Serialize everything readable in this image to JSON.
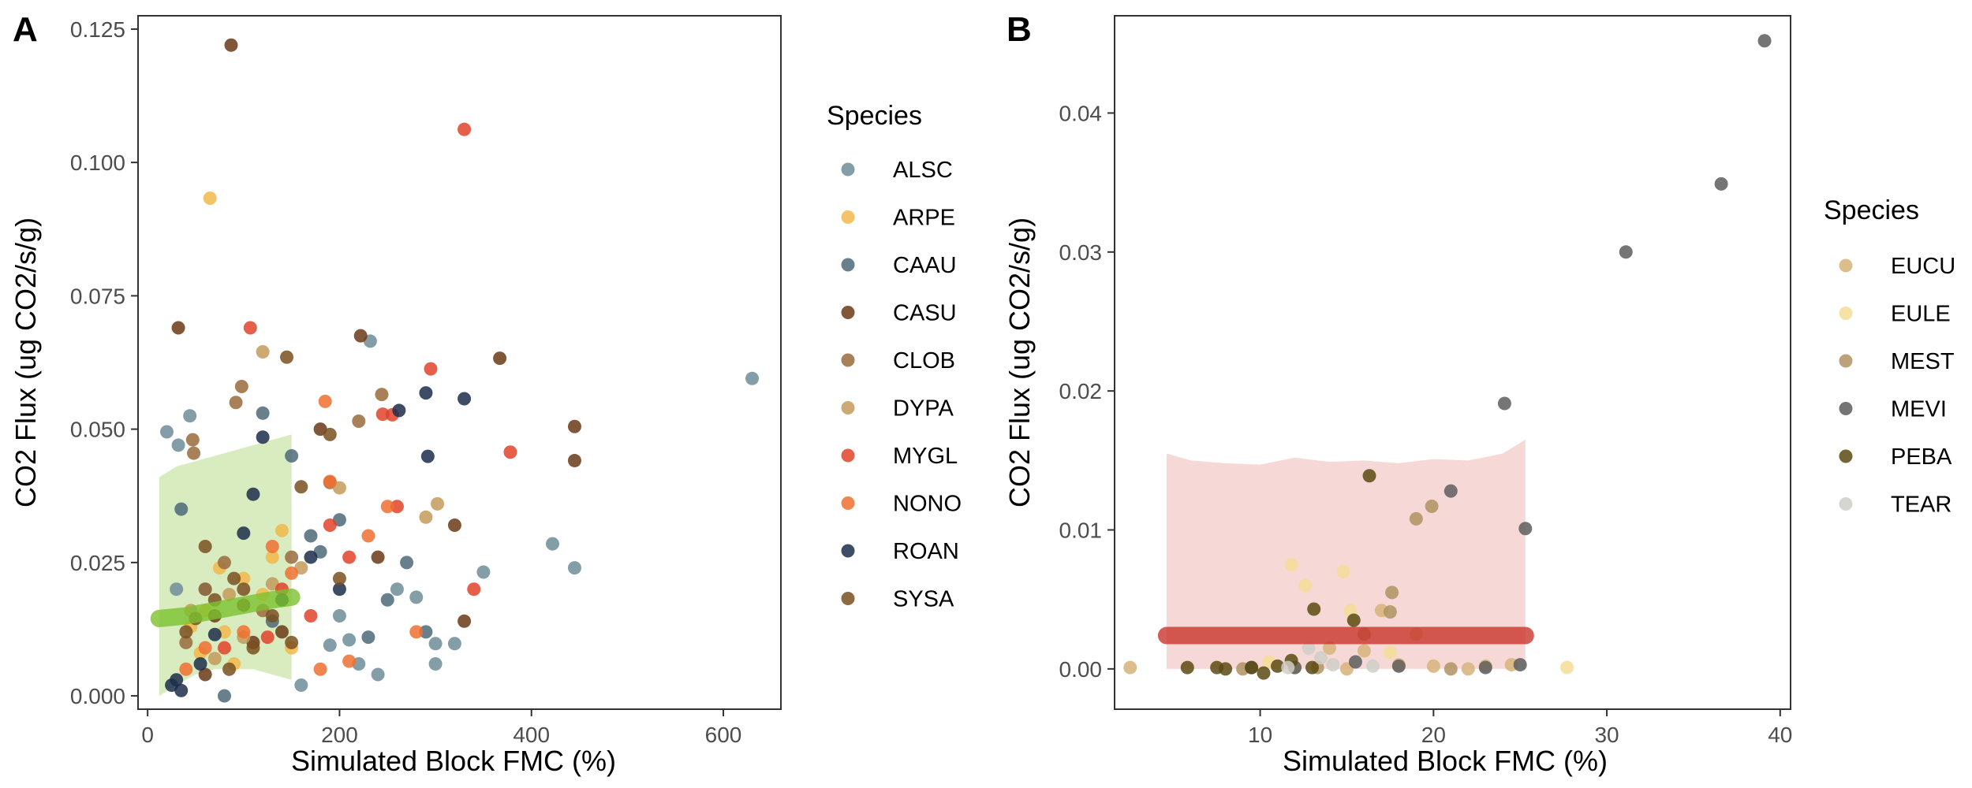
{
  "chart_data": [
    {
      "panel_label": "A",
      "type": "scatter",
      "xlabel": "Simulated Block FMC (%)",
      "ylabel": "CO2 Flux (ug CO2/s/g)",
      "xlim": [
        -10,
        660
      ],
      "ylim": [
        -0.0025,
        0.1275
      ],
      "xticks": [
        0,
        200,
        400,
        600
      ],
      "yticks": [
        0.0,
        0.025,
        0.05,
        0.075,
        0.1,
        0.125
      ],
      "ytick_labels": [
        "0.000",
        "0.025",
        "0.050",
        "0.075",
        "0.100",
        "0.125"
      ],
      "legend_title": "Species",
      "legend_position": "right",
      "grid": false,
      "ribbon": {
        "color": "#8fc84a",
        "x": [
          12,
          30,
          50,
          70,
          90,
          110,
          130,
          150
        ],
        "lower": [
          0.0,
          0.002,
          0.004,
          0.005,
          0.005,
          0.005,
          0.004,
          0.003
        ],
        "upper": [
          0.041,
          0.043,
          0.044,
          0.045,
          0.046,
          0.047,
          0.048,
          0.049
        ]
      },
      "trend_line": {
        "color": "#7cc22e",
        "x": [
          12,
          40,
          70,
          100,
          130,
          150
        ],
        "y": [
          0.0145,
          0.015,
          0.016,
          0.017,
          0.018,
          0.0185
        ]
      },
      "series": [
        {
          "name": "ALSC",
          "color": "#6f8d99",
          "points": [
            [
              20,
              0.0495
            ],
            [
              30,
              0.02
            ],
            [
              44,
              0.0525
            ],
            [
              32,
              0.047
            ],
            [
              630,
              0.0595
            ],
            [
              232,
              0.0665
            ],
            [
              422,
              0.0285
            ],
            [
              445,
              0.024
            ],
            [
              350,
              0.0232
            ],
            [
              300,
              0.0098
            ],
            [
              280,
              0.0185
            ],
            [
              220,
              0.006
            ],
            [
              240,
              0.004
            ],
            [
              160,
              0.002
            ],
            [
              190,
              0.0095
            ],
            [
              200,
              0.015
            ],
            [
              260,
              0.02
            ],
            [
              320,
              0.0098
            ],
            [
              300,
              0.006
            ],
            [
              210,
              0.0105
            ]
          ]
        },
        {
          "name": "ARPE",
          "color": "#f2b84b",
          "points": [
            [
              65,
              0.0933
            ],
            [
              60,
              0.016
            ],
            [
              80,
              0.012
            ],
            [
              100,
              0.022
            ],
            [
              120,
              0.019
            ],
            [
              140,
              0.031
            ],
            [
              55,
              0.008
            ],
            [
              45,
              0.013
            ],
            [
              75,
              0.024
            ],
            [
              130,
              0.026
            ],
            [
              150,
              0.009
            ],
            [
              90,
              0.006
            ]
          ]
        },
        {
          "name": "CAAU",
          "color": "#4e6878",
          "points": [
            [
              35,
              0.035
            ],
            [
              60,
              0.02
            ],
            [
              170,
              0.03
            ],
            [
              200,
              0.033
            ],
            [
              150,
              0.045
            ],
            [
              250,
              0.018
            ],
            [
              270,
              0.025
            ],
            [
              130,
              0.014
            ],
            [
              80,
              0.0
            ],
            [
              290,
              0.012
            ],
            [
              230,
              0.011
            ],
            [
              180,
              0.027
            ],
            [
              120,
              0.053
            ]
          ]
        },
        {
          "name": "CASU",
          "color": "#6b3a16",
          "points": [
            [
              87,
              0.122
            ],
            [
              32,
              0.069
            ],
            [
              222,
              0.0675
            ],
            [
              367,
              0.0633
            ],
            [
              445,
              0.0505
            ],
            [
              445,
              0.0441
            ],
            [
              240,
              0.026
            ],
            [
              320,
              0.032
            ],
            [
              100,
              0.017
            ],
            [
              70,
              0.015
            ],
            [
              140,
              0.012
            ],
            [
              180,
              0.05
            ],
            [
              330,
              0.014
            ],
            [
              60,
              0.004
            ],
            [
              110,
              0.01
            ]
          ]
        },
        {
          "name": "CLOB",
          "color": "#9a6b3c",
          "points": [
            [
              98,
              0.058
            ],
            [
              92,
              0.055
            ],
            [
              47,
              0.048
            ],
            [
              48,
              0.0455
            ],
            [
              244,
              0.0565
            ],
            [
              220,
              0.0515
            ],
            [
              60,
              0.02
            ],
            [
              120,
              0.016
            ],
            [
              150,
              0.026
            ],
            [
              190,
              0.04
            ],
            [
              40,
              0.01
            ],
            [
              80,
              0.025
            ]
          ]
        },
        {
          "name": "DYPA",
          "color": "#c49a5a",
          "points": [
            [
              120,
              0.0645
            ],
            [
              302,
              0.036
            ],
            [
              290,
              0.0335
            ],
            [
              200,
              0.039
            ],
            [
              160,
              0.024
            ],
            [
              100,
              0.011
            ],
            [
              70,
              0.007
            ],
            [
              130,
              0.021
            ],
            [
              45,
              0.016
            ],
            [
              85,
              0.019
            ]
          ]
        },
        {
          "name": "MYGL",
          "color": "#e0432a",
          "points": [
            [
              330,
              0.1062
            ],
            [
              107,
              0.069
            ],
            [
              295,
              0.0613
            ],
            [
              378,
              0.0457
            ],
            [
              245,
              0.0528
            ],
            [
              255,
              0.0527
            ],
            [
              260,
              0.0355
            ],
            [
              190,
              0.032
            ],
            [
              140,
              0.02
            ],
            [
              340,
              0.02
            ],
            [
              210,
              0.026
            ],
            [
              170,
              0.015
            ],
            [
              125,
              0.011
            ],
            [
              80,
              0.009
            ]
          ]
        },
        {
          "name": "NONO",
          "color": "#f07030",
          "points": [
            [
              185,
              0.0552
            ],
            [
              190,
              0.0402
            ],
            [
              230,
              0.03
            ],
            [
              210,
              0.0065
            ],
            [
              180,
              0.005
            ],
            [
              150,
              0.023
            ],
            [
              100,
              0.012
            ],
            [
              60,
              0.009
            ],
            [
              40,
              0.005
            ],
            [
              130,
              0.028
            ],
            [
              250,
              0.0355
            ],
            [
              280,
              0.012
            ]
          ]
        },
        {
          "name": "ROAN",
          "color": "#1c2e4a",
          "points": [
            [
              330,
              0.0557
            ],
            [
              290,
              0.0568
            ],
            [
              292,
              0.0449
            ],
            [
              262,
              0.0535
            ],
            [
              120,
              0.0485
            ],
            [
              110,
              0.0378
            ],
            [
              25,
              0.002
            ],
            [
              30,
              0.003
            ],
            [
              35,
              0.001
            ],
            [
              100,
              0.0305
            ],
            [
              170,
              0.026
            ],
            [
              140,
              0.018
            ],
            [
              70,
              0.0115
            ],
            [
              55,
              0.006
            ],
            [
              200,
              0.02
            ]
          ]
        },
        {
          "name": "SYSA",
          "color": "#7a5020",
          "points": [
            [
              145,
              0.0635
            ],
            [
              160,
              0.0392
            ],
            [
              190,
              0.049
            ],
            [
              50,
              0.0145
            ],
            [
              70,
              0.018
            ],
            [
              90,
              0.022
            ],
            [
              110,
              0.009
            ],
            [
              130,
              0.015
            ],
            [
              60,
              0.028
            ],
            [
              40,
              0.012
            ],
            [
              85,
              0.005
            ],
            [
              150,
              0.01
            ],
            [
              200,
              0.022
            ],
            [
              100,
              0.02
            ]
          ]
        }
      ]
    },
    {
      "panel_label": "B",
      "type": "scatter",
      "xlabel": "Simulated Block FMC (%)",
      "ylabel": "CO2 Flux (ug CO2/s/g)",
      "xlim": [
        1.6,
        40.6
      ],
      "ylim": [
        -0.0029,
        0.047
      ],
      "xticks": [
        10,
        20,
        30,
        40
      ],
      "yticks": [
        0.0,
        0.01,
        0.02,
        0.03,
        0.04
      ],
      "ytick_labels": [
        "0.00",
        "0.01",
        "0.02",
        "0.03",
        "0.04"
      ],
      "legend_title": "Species",
      "legend_position": "right",
      "grid": false,
      "ribbon": {
        "color": "#f2c9c6",
        "x": [
          4.6,
          6,
          8,
          10,
          12,
          14,
          16,
          18,
          20,
          22,
          24,
          25.3
        ],
        "lower": [
          0.0,
          0.0,
          0.0,
          0.0,
          0.0,
          0.0,
          0.0,
          0.0,
          0.0,
          0.0,
          0.0,
          0.0
        ],
        "upper": [
          0.0155,
          0.015,
          0.0148,
          0.0147,
          0.0152,
          0.0149,
          0.015,
          0.0148,
          0.0151,
          0.015,
          0.0155,
          0.0165
        ]
      },
      "trend_line": {
        "color": "#c9342a",
        "x": [
          4.6,
          25.3
        ],
        "y": [
          0.0024,
          0.0024
        ]
      },
      "series": [
        {
          "name": "EUCU",
          "color": "#d6b37a",
          "points": [
            [
              2.5,
              0.0001
            ],
            [
              15,
              0.0
            ],
            [
              18,
              0.0003
            ],
            [
              20,
              0.0002
            ],
            [
              22,
              0.0
            ],
            [
              12,
              0.0001
            ],
            [
              14,
              0.0015
            ],
            [
              17,
              0.0042
            ],
            [
              16,
              0.0013
            ],
            [
              19,
              0.0025
            ],
            [
              23,
              0.0002
            ],
            [
              24.5,
              0.0003
            ]
          ]
        },
        {
          "name": "EULE",
          "color": "#f5dc97",
          "points": [
            [
              11.8,
              0.0075
            ],
            [
              14.8,
              0.007
            ],
            [
              12.6,
              0.006
            ],
            [
              27.7,
              0.0001
            ],
            [
              15.2,
              0.0042
            ],
            [
              17.5,
              0.0012
            ],
            [
              10.5,
              0.0005
            ]
          ]
        },
        {
          "name": "MEST",
          "color": "#b09262",
          "points": [
            [
              19.9,
              0.0117
            ],
            [
              19.0,
              0.0108
            ],
            [
              17.6,
              0.0055
            ],
            [
              17.5,
              0.0041
            ],
            [
              13.3,
              0.0001
            ],
            [
              16,
              0.0025
            ],
            [
              21,
              0.0
            ],
            [
              9,
              0.0
            ]
          ]
        },
        {
          "name": "MEVI",
          "color": "#5d5d5d",
          "points": [
            [
              39.1,
              0.0452
            ],
            [
              36.6,
              0.0349
            ],
            [
              31.1,
              0.03
            ],
            [
              24.1,
              0.0191
            ],
            [
              21.0,
              0.0128
            ],
            [
              25.3,
              0.0101
            ],
            [
              9.5,
              0.0001
            ],
            [
              12,
              0.0001
            ],
            [
              15.5,
              0.0005
            ],
            [
              18,
              0.0002
            ],
            [
              23,
              0.0001
            ],
            [
              25,
              0.0003
            ]
          ]
        },
        {
          "name": "PEBA",
          "color": "#5a4a12",
          "points": [
            [
              16.3,
              0.0139
            ],
            [
              15.4,
              0.0035
            ],
            [
              13.1,
              0.0043
            ],
            [
              5.8,
              0.0001
            ],
            [
              7.5,
              0.0001
            ],
            [
              8,
              0.0
            ],
            [
              9.5,
              0.0001
            ],
            [
              10.2,
              -0.0003
            ],
            [
              11,
              0.0002
            ],
            [
              11.8,
              0.0006
            ],
            [
              13,
              0.0001
            ]
          ]
        },
        {
          "name": "TEAR",
          "color": "#cfcfc8",
          "points": [
            [
              12.8,
              0.0015
            ],
            [
              13.5,
              0.0008
            ],
            [
              14.2,
              0.0003
            ],
            [
              11.6,
              0.0001
            ],
            [
              16.5,
              0.0002
            ]
          ]
        }
      ]
    }
  ]
}
